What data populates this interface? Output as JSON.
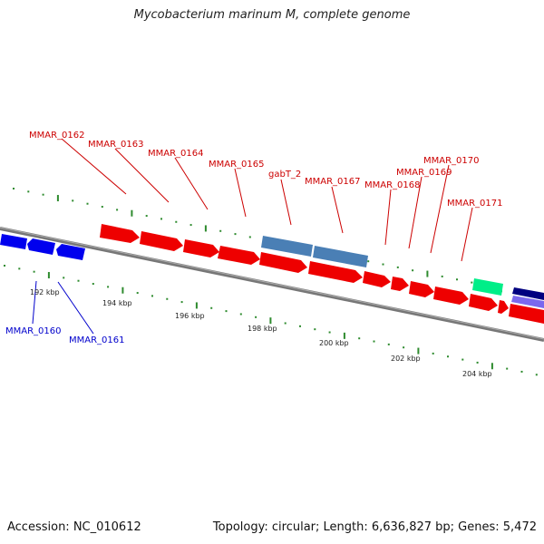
{
  "title": "Mycobacterium marinum M, complete genome",
  "footer": {
    "accession": "Accession: NC_010612",
    "summary": "Topology: circular; Length: 6,636,827 bp; Genes: 5,472"
  },
  "colors": {
    "forward_gene": "#ff0000",
    "reverse_gene": "#0000ff",
    "gabT_gene": "#4682b4",
    "green_feature": "#00ee88",
    "navy_feature": "#000080",
    "lavender_feature": "#7b68ee",
    "backbone": "#808080",
    "tick": "#2e8b2e",
    "forward_label": "#cc0000",
    "reverse_label": "#0000cc"
  },
  "scale_labels": [
    "192 kbp",
    "194 kbp",
    "196 kbp",
    "198 kbp",
    "200 kbp",
    "202 kbp",
    "204 kbp"
  ],
  "forward_genes": [
    "MMAR_0162",
    "MMAR_0163",
    "MMAR_0164",
    "MMAR_0165",
    "gabT_2",
    "MMAR_0167",
    "MMAR_0168",
    "MMAR_0169",
    "MMAR_0170",
    "MMAR_0171"
  ],
  "reverse_genes": [
    "MMAR_0160",
    "MMAR_0161"
  ]
}
